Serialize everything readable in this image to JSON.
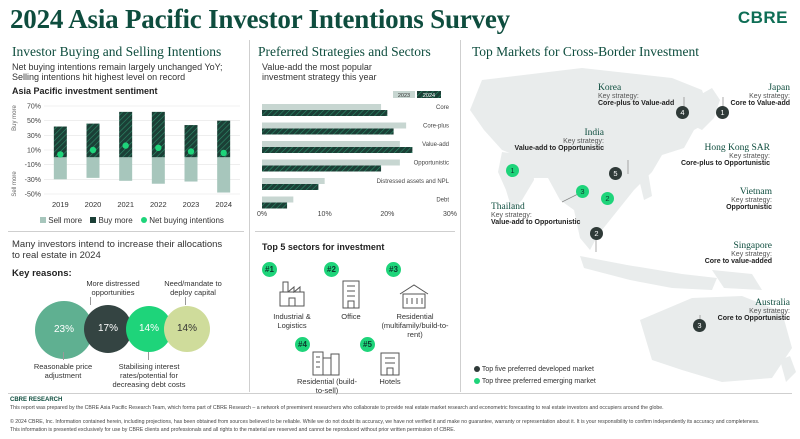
{
  "header": {
    "title": "2024 Asia Pacific Investor Intentions Survey",
    "logo": "CBRE"
  },
  "colors": {
    "dark_green": "#0e4d3e",
    "sell": "#a7c6bc",
    "buy": "#1b3f36",
    "net": "#1ed47a",
    "light_grey": "#c7d6d1",
    "olive": "#cfdc9b"
  },
  "left": {
    "heading": "Investor Buying and Selling Intentions",
    "subline1": "Net buying intentions remain largely unchanged YoY;",
    "subline2": "Selling intentions hit highest level on record",
    "chart_title": "Asia Pacific investment sentiment",
    "buy_more_axis": "Buy more",
    "sell_more_axis": "Sell more",
    "legend_sell": "Sell more",
    "legend_buy": "Buy more",
    "legend_net": "Net buying intentions",
    "allocation_text1": "Many investors intend to increase their allocations",
    "allocation_text2": "to real estate in 2024",
    "key_reasons": "Key reasons:",
    "reasons": [
      {
        "pct": "23%",
        "label": "Reasonable price adjustment"
      },
      {
        "pct": "17%",
        "label": "More distressed opportunities"
      },
      {
        "pct": "14%",
        "label": "Stabilising interest rates/potential for decreasing debt costs"
      },
      {
        "pct": "14%",
        "label": "Need/mandate to deploy capital"
      }
    ]
  },
  "middle": {
    "heading": "Preferred Strategies and Sectors",
    "subline1": "Value-add the most popular",
    "subline2": "investment strategy this year",
    "sectors_heading": "Top 5 sectors for investment",
    "sectors": [
      {
        "rank": "#1",
        "label": "Industrial & Logistics"
      },
      {
        "rank": "#2",
        "label": "Office"
      },
      {
        "rank": "#3",
        "label": "Residential (multifamily/build-to-rent)"
      },
      {
        "rank": "#4",
        "label": "Residential (build-to-sell)"
      },
      {
        "rank": "#5",
        "label": "Hotels"
      }
    ]
  },
  "right": {
    "heading": "Top Markets for Cross-Border Investment",
    "key_strategy_label": "Key strategy:",
    "markets": [
      {
        "num": "1",
        "name": "Japan",
        "strategy": "Core to Value-add",
        "type": "developed"
      },
      {
        "num": "4",
        "name": "Korea",
        "strategy": "Core-plus to Value-add",
        "type": "developed"
      },
      {
        "num": "1",
        "name": "India",
        "strategy": "Value-add to Opportunistic",
        "type": "emerging"
      },
      {
        "num": "5",
        "name": "Hong Kong SAR",
        "strategy": "Core-plus to Opportunistic",
        "type": "developed"
      },
      {
        "num": "2",
        "name": "Vietnam",
        "strategy": "Opportunistic",
        "type": "emerging"
      },
      {
        "num": "3",
        "name": "Thailand",
        "strategy": "Value-add to Opportunistic",
        "type": "emerging"
      },
      {
        "num": "2",
        "name": "Singapore",
        "strategy": "Core to value-added",
        "type": "developed"
      },
      {
        "num": "3",
        "name": "Australia",
        "strategy": "Core to Opportunistic",
        "type": "developed"
      }
    ],
    "legend_developed": "Top five preferred developed market",
    "legend_emerging": "Top three preferred emerging market"
  },
  "footer": {
    "label": "CBRE RESEARCH",
    "line1": "This report was prepared by the CBRE Asia Pacific Research Team, which forms part of CBRE Research – a network of preeminent researchers who collaborate to provide real estate market research and econometric forecasting to real estate investors and occupiers around the globe.",
    "line2": "© 2024 CBRE, Inc. Information contained herein, including projections, has been obtained from sources believed to be reliable. While we do not doubt its accuracy, we have not verified it and make no guarantee, warranty or representation about it. It is your responsibility to confirm independently its accuracy and completeness.",
    "line3": "This information is presented exclusively for use by CBRE clients and professionals and all rights to the material are reserved and cannot be reproduced without prior written permission of CBRE."
  },
  "chart_data": [
    {
      "type": "bar",
      "title": "Asia Pacific investment sentiment",
      "categories": [
        "2019",
        "2020",
        "2021",
        "2022",
        "2023",
        "2024"
      ],
      "series": [
        {
          "name": "Buy more",
          "values": [
            42,
            46,
            62,
            62,
            44,
            50
          ]
        },
        {
          "name": "Sell more",
          "values": [
            -30,
            -28,
            -32,
            -36,
            -33,
            -48
          ]
        },
        {
          "name": "Net buying intentions",
          "values": [
            4,
            10,
            16,
            13,
            8,
            6
          ]
        }
      ],
      "ylim": [
        -50,
        70
      ],
      "yticks": [
        "70%",
        "50%",
        "30%",
        "10%",
        "-10%",
        "-30%",
        "-50%"
      ],
      "xlabel": "",
      "ylabel": ""
    },
    {
      "type": "bar",
      "orientation": "horizontal",
      "title": "",
      "categories": [
        "Core",
        "Core-plus",
        "Value-add",
        "Opportunistic",
        "Distressed assets and NPL",
        "Debt"
      ],
      "series": [
        {
          "name": "2023",
          "values": [
            19,
            23,
            22,
            22,
            10,
            5
          ]
        },
        {
          "name": "2024",
          "values": [
            20,
            21,
            24,
            19,
            9,
            4
          ]
        }
      ],
      "xlim": [
        0,
        30
      ],
      "xticks": [
        "0%",
        "10%",
        "20%",
        "30%"
      ],
      "xlabel": "",
      "ylabel": ""
    }
  ]
}
